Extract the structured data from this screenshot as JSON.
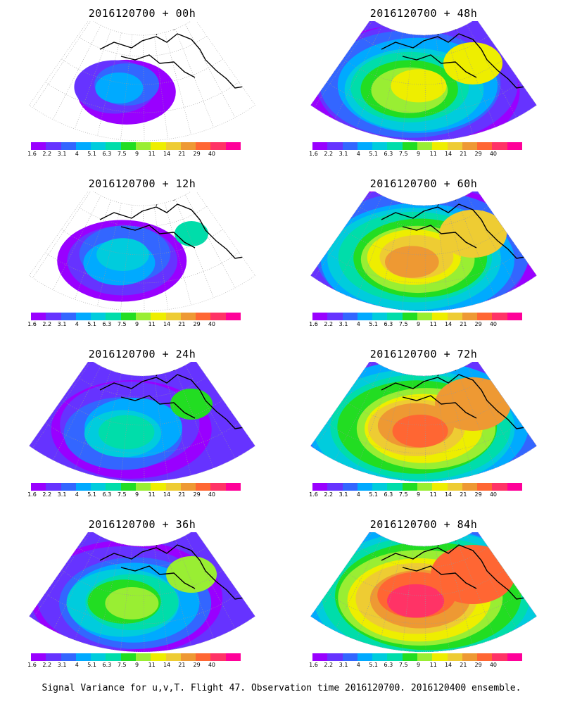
{
  "panels": [
    {
      "title": "2016120700 + 00h",
      "intensity": 0
    },
    {
      "title": "2016120700 + 48h",
      "intensity": 4
    },
    {
      "title": "2016120700 + 12h",
      "intensity": 1
    },
    {
      "title": "2016120700 + 60h",
      "intensity": 5
    },
    {
      "title": "2016120700 + 24h",
      "intensity": 2
    },
    {
      "title": "2016120700 + 72h",
      "intensity": 6
    },
    {
      "title": "2016120700 + 36h",
      "intensity": 3
    },
    {
      "title": "2016120700 + 84h",
      "intensity": 7
    }
  ],
  "colorbar": {
    "colors": [
      "#9900ff",
      "#6633ff",
      "#3366ff",
      "#00aaff",
      "#00ccdd",
      "#00ddaa",
      "#22dd22",
      "#99ee33",
      "#eeee00",
      "#eecc33",
      "#ee9933",
      "#ff6633",
      "#ff3366",
      "#ff0099"
    ],
    "labels": [
      "1.6",
      "2.2",
      "3.1",
      "4",
      "5.1",
      "6.3",
      "7.5",
      "9",
      "11",
      "14",
      "21",
      "29",
      "40"
    ]
  },
  "footer": "Signal Variance for u,v,T. Flight 47. Observation time 2016120700. 2016120400 ensemble."
}
